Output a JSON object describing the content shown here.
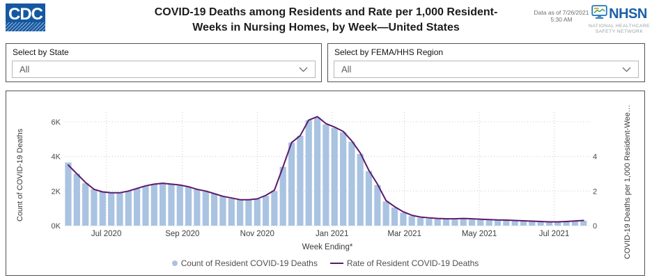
{
  "header": {
    "cdc_logo_text": "CDC",
    "title_line1": "COVID-19 Deaths among Residents and Rate per 1,000 Resident-",
    "title_line2": "Weeks in Nursing Homes, by Week—United States",
    "data_as_of_line1": "Data as of 7/26/2021",
    "data_as_of_line2": "5:30 AM",
    "nhsn_acronym": "NHSN",
    "nhsn_sub_line1": "NATIONAL HEALTHCARE",
    "nhsn_sub_line2": "SAFETY NETWORK"
  },
  "filters": {
    "state": {
      "label": "Select by State",
      "value": "All"
    },
    "region": {
      "label": "Select by FEMA/HHS Region",
      "value": "All"
    }
  },
  "chart_data": {
    "type": "combo (bar + line, dual axis)",
    "xlabel": "Week Ending*",
    "ylabel_left": "Count of COVID-19 Deaths",
    "ylabel_right": "COVID-19 Deaths per 1,000 Resident-Wee…",
    "y_left_ticks": [
      "0K",
      "2K",
      "4K",
      "6K"
    ],
    "y_right_ticks": [
      "0",
      "2",
      "4"
    ],
    "ylim_left": [
      0,
      6600
    ],
    "ylim_right": [
      0,
      6.6
    ],
    "grid": "dotted",
    "legend_position": "bottom",
    "x_ticks": [
      {
        "label": "Jul 2020",
        "date": "2020-07-01"
      },
      {
        "label": "Sep 2020",
        "date": "2020-09-01"
      },
      {
        "label": "Nov 2020",
        "date": "2020-11-01"
      },
      {
        "label": "Jan 2021",
        "date": "2021-01-01"
      },
      {
        "label": "Mar 2021",
        "date": "2021-03-01"
      },
      {
        "label": "May 2021",
        "date": "2021-05-01"
      },
      {
        "label": "Jul 2021",
        "date": "2021-07-01"
      }
    ],
    "categories": [
      "2020-05-31",
      "2020-06-07",
      "2020-06-14",
      "2020-06-21",
      "2020-06-28",
      "2020-07-05",
      "2020-07-12",
      "2020-07-19",
      "2020-07-26",
      "2020-08-02",
      "2020-08-09",
      "2020-08-16",
      "2020-08-23",
      "2020-08-30",
      "2020-09-06",
      "2020-09-13",
      "2020-09-20",
      "2020-09-27",
      "2020-10-04",
      "2020-10-11",
      "2020-10-18",
      "2020-10-25",
      "2020-11-01",
      "2020-11-08",
      "2020-11-15",
      "2020-11-22",
      "2020-11-29",
      "2020-12-06",
      "2020-12-13",
      "2020-12-20",
      "2020-12-27",
      "2021-01-03",
      "2021-01-10",
      "2021-01-17",
      "2021-01-24",
      "2021-01-31",
      "2021-02-07",
      "2021-02-14",
      "2021-02-21",
      "2021-02-28",
      "2021-03-07",
      "2021-03-14",
      "2021-03-21",
      "2021-03-28",
      "2021-04-04",
      "2021-04-11",
      "2021-04-18",
      "2021-04-25",
      "2021-05-02",
      "2021-05-09",
      "2021-05-16",
      "2021-05-23",
      "2021-05-30",
      "2021-06-06",
      "2021-06-13",
      "2021-06-20",
      "2021-06-27",
      "2021-07-04",
      "2021-07-11",
      "2021-07-18",
      "2021-07-25"
    ],
    "series": [
      {
        "name": "Count of Resident COVID-19 Deaths",
        "type": "bar",
        "axis": "left",
        "color": "#a9c3e1",
        "values": [
          3650,
          3000,
          2450,
          2100,
          1950,
          1880,
          1900,
          2000,
          2150,
          2300,
          2420,
          2480,
          2430,
          2350,
          2230,
          2100,
          1980,
          1850,
          1700,
          1570,
          1500,
          1490,
          1540,
          1720,
          2000,
          3400,
          4800,
          5200,
          6100,
          6250,
          5850,
          5650,
          5400,
          4850,
          4150,
          3150,
          2350,
          1400,
          1050,
          750,
          550,
          450,
          400,
          380,
          360,
          350,
          380,
          350,
          330,
          310,
          300,
          290,
          270,
          250,
          230,
          210,
          200,
          200,
          220,
          250,
          280
        ]
      },
      {
        "name": "Rate of Resident COVID-19 Deaths",
        "type": "line",
        "axis": "right",
        "color": "#5c1a6e",
        "values": [
          3.5,
          3.0,
          2.5,
          2.1,
          1.95,
          1.9,
          1.9,
          2.0,
          2.15,
          2.3,
          2.4,
          2.45,
          2.4,
          2.35,
          2.25,
          2.1,
          2.0,
          1.85,
          1.7,
          1.6,
          1.5,
          1.5,
          1.55,
          1.75,
          2.05,
          3.4,
          4.8,
          5.2,
          6.1,
          6.3,
          5.9,
          5.7,
          5.45,
          4.9,
          4.2,
          3.2,
          2.4,
          1.45,
          1.1,
          0.8,
          0.6,
          0.5,
          0.45,
          0.42,
          0.4,
          0.4,
          0.42,
          0.4,
          0.37,
          0.35,
          0.33,
          0.32,
          0.3,
          0.28,
          0.26,
          0.24,
          0.22,
          0.22,
          0.24,
          0.27,
          0.3
        ]
      }
    ]
  }
}
